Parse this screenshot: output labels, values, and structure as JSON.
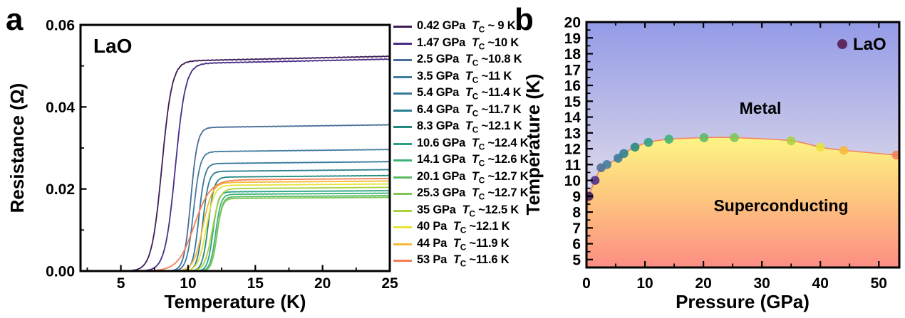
{
  "figure": {
    "background": "#ffffff"
  },
  "panels": {
    "a": {
      "letter": "a",
      "sample_label": "LaO"
    },
    "b": {
      "letter": "b",
      "legend_label": "LaO",
      "metal_label": "Metal",
      "superconducting_label": "Superconducting"
    }
  },
  "chart_data": [
    {
      "type": "line",
      "panel": "a",
      "title": "Resistance vs temperature of LaO under pressure",
      "xlabel": "Temperature (K)",
      "ylabel": "Resistance (Ω)",
      "xlim": [
        2,
        25
      ],
      "ylim": [
        0,
        0.06
      ],
      "grid": false,
      "x_ticks": {
        "major": [
          5,
          10,
          15,
          20,
          25
        ],
        "minor": [
          2.5,
          7.5,
          12.5,
          17.5,
          22.5
        ]
      },
      "y_ticks": {
        "major_values": [
          0,
          0.02,
          0.04,
          0.06
        ],
        "major_labels": [
          "0.00",
          "0.02",
          "0.04",
          "0.06"
        ],
        "minor": [
          0.01,
          0.03,
          0.05
        ]
      },
      "tc_symbol": {
        "base": "T",
        "subscript": "C"
      },
      "series": [
        {
          "pressure_label": "0.42 GPa",
          "tc_label": "~ 9 K",
          "tc": 9,
          "plateau": 0.0512,
          "slope": 0.0014,
          "trans_width": 0.38,
          "mid_offset": 0.95,
          "color": "#3d1c56"
        },
        {
          "pressure_label": "1.47 GPa",
          "tc_label": "~10 K",
          "tc": 10,
          "plateau": 0.0506,
          "slope": 0.0014,
          "trans_width": 0.38,
          "mid_offset": 0.95,
          "color": "#4a2d87"
        },
        {
          "pressure_label": "2.5 GPa",
          "tc_label": "~10.8 K",
          "tc": 10.8,
          "plateau": 0.035,
          "slope": 0.0013,
          "trans_width": 0.25,
          "mid_offset": 0.6,
          "color": "#4a6d99"
        },
        {
          "pressure_label": "3.5 GPa",
          "tc_label": "~11 K",
          "tc": 11,
          "plateau": 0.0291,
          "slope": 0.0013,
          "trans_width": 0.25,
          "mid_offset": 0.6,
          "color": "#427c9f"
        },
        {
          "pressure_label": "5.4 GPa",
          "tc_label": "~11.4 K",
          "tc": 11.4,
          "plateau": 0.0262,
          "slope": 0.0013,
          "trans_width": 0.22,
          "mid_offset": 0.6,
          "color": "#35789b"
        },
        {
          "pressure_label": "6.4 GPa",
          "tc_label": "~11.7 K",
          "tc": 11.7,
          "plateau": 0.0243,
          "slope": 0.0013,
          "trans_width": 0.22,
          "mid_offset": 0.6,
          "color": "#2b7f93"
        },
        {
          "pressure_label": "8.3 GPa",
          "tc_label": "~12.1 K",
          "tc": 12.1,
          "plateau": 0.0229,
          "slope": 0.0013,
          "trans_width": 0.22,
          "mid_offset": 0.6,
          "color": "#23897f"
        },
        {
          "pressure_label": "10.6 GPa",
          "tc_label": "~12.4 K",
          "tc": 12.4,
          "plateau": 0.0193,
          "slope": 0.0012,
          "trans_width": 0.2,
          "mid_offset": 0.55,
          "color": "#2aa187"
        },
        {
          "pressure_label": "14.1 GPa",
          "tc_label": "~12.6 K",
          "tc": 12.6,
          "plateau": 0.0187,
          "slope": 0.0012,
          "trans_width": 0.2,
          "mid_offset": 0.55,
          "color": "#3cb278"
        },
        {
          "pressure_label": "20.1 GPa",
          "tc_label": "~12.7 K",
          "tc": 12.7,
          "plateau": 0.0181,
          "slope": 0.0012,
          "trans_width": 0.2,
          "mid_offset": 0.55,
          "color": "#5abb63"
        },
        {
          "pressure_label": "25.3 GPa",
          "tc_label": "~12.7 K",
          "tc": 12.7,
          "plateau": 0.0177,
          "slope": 0.0012,
          "trans_width": 0.2,
          "mid_offset": 0.55,
          "color": "#7ec556"
        },
        {
          "pressure_label": "35 GPa",
          "tc_label": "~12.5 K",
          "tc": 12.5,
          "plateau": 0.0201,
          "slope": 0.0012,
          "trans_width": 0.28,
          "mid_offset": 0.7,
          "color": "#abd23f"
        },
        {
          "pressure_label": "40 Pa",
          "tc_label": "~12.1 K",
          "tc": 12.1,
          "plateau": 0.0209,
          "slope": 0.0012,
          "trans_width": 0.3,
          "mid_offset": 0.75,
          "color": "#e8e23c"
        },
        {
          "pressure_label": "44 Pa",
          "tc_label": "~11.9 K",
          "tc": 11.9,
          "plateau": 0.0216,
          "slope": 0.0012,
          "trans_width": 0.35,
          "mid_offset": 0.8,
          "color": "#f6b93c"
        },
        {
          "pressure_label": "53 Pa",
          "tc_label": "~11.6 K",
          "tc": 11.6,
          "plateau": 0.0222,
          "slope": 0.0012,
          "trans_width": 0.6,
          "mid_offset": 1.15,
          "color": "#f47e57"
        }
      ]
    },
    {
      "type": "scatter",
      "panel": "b",
      "title": "Pressure–temperature phase diagram of LaO",
      "xlabel": "Pressure (GPa)",
      "ylabel": "Temperature (K)",
      "xlim": [
        0,
        53.5
      ],
      "ylim": [
        4.5,
        20
      ],
      "grid": false,
      "x_ticks": {
        "major": [
          0,
          10,
          20,
          30,
          40,
          50
        ],
        "minor": [
          5,
          15,
          25,
          35,
          45
        ]
      },
      "y_ticks": {
        "major": [
          5,
          6,
          7,
          8,
          9,
          10,
          11,
          12,
          13,
          14,
          15,
          16,
          17,
          18,
          19,
          20
        ],
        "minor": [
          5.5,
          6.5,
          7.5,
          8.5,
          9.5,
          10.5,
          11.5,
          12.5,
          13.5,
          14.5,
          15.5,
          16.5,
          17.5,
          18.5,
          19.5
        ]
      },
      "regions": {
        "metal": "Metal",
        "superconducting": "Superconducting"
      },
      "points": [
        {
          "pressure": 0.42,
          "tc": 9,
          "color": "#3d1c56"
        },
        {
          "pressure": 1.47,
          "tc": 10,
          "color": "#4a2d87"
        },
        {
          "pressure": 2.5,
          "tc": 10.8,
          "color": "#4a6d99"
        },
        {
          "pressure": 3.5,
          "tc": 11,
          "color": "#427c9f"
        },
        {
          "pressure": 5.4,
          "tc": 11.4,
          "color": "#35789b"
        },
        {
          "pressure": 6.4,
          "tc": 11.7,
          "color": "#2b7f93"
        },
        {
          "pressure": 8.3,
          "tc": 12.1,
          "color": "#23897f"
        },
        {
          "pressure": 10.6,
          "tc": 12.4,
          "color": "#2aa187"
        },
        {
          "pressure": 14.1,
          "tc": 12.6,
          "color": "#3cb278"
        },
        {
          "pressure": 20.1,
          "tc": 12.7,
          "color": "#5abb63"
        },
        {
          "pressure": 25.3,
          "tc": 12.7,
          "color": "#7ec556"
        },
        {
          "pressure": 35,
          "tc": 12.5,
          "color": "#abd23f"
        },
        {
          "pressure": 40,
          "tc": 12.1,
          "color": "#e8e23c"
        },
        {
          "pressure": 44,
          "tc": 11.9,
          "color": "#f6b93c"
        },
        {
          "pressure": 53,
          "tc": 11.6,
          "color": "#f47e57"
        }
      ],
      "boundary": {
        "start": [
          0,
          7.8
        ],
        "end": [
          53.5,
          11.55
        ],
        "color": "#f5835e"
      },
      "colors": {
        "metal_top": "#949be7",
        "metal_mid": "#cfcde9",
        "metal_bottom": "#eceaf0",
        "sc_top": "#fdf584",
        "sc_mid": "#fdc87e",
        "sc_bottom": "#fd8d84"
      },
      "legend": {
        "label": "LaO",
        "marker_color": "#5f2a63"
      }
    }
  ]
}
